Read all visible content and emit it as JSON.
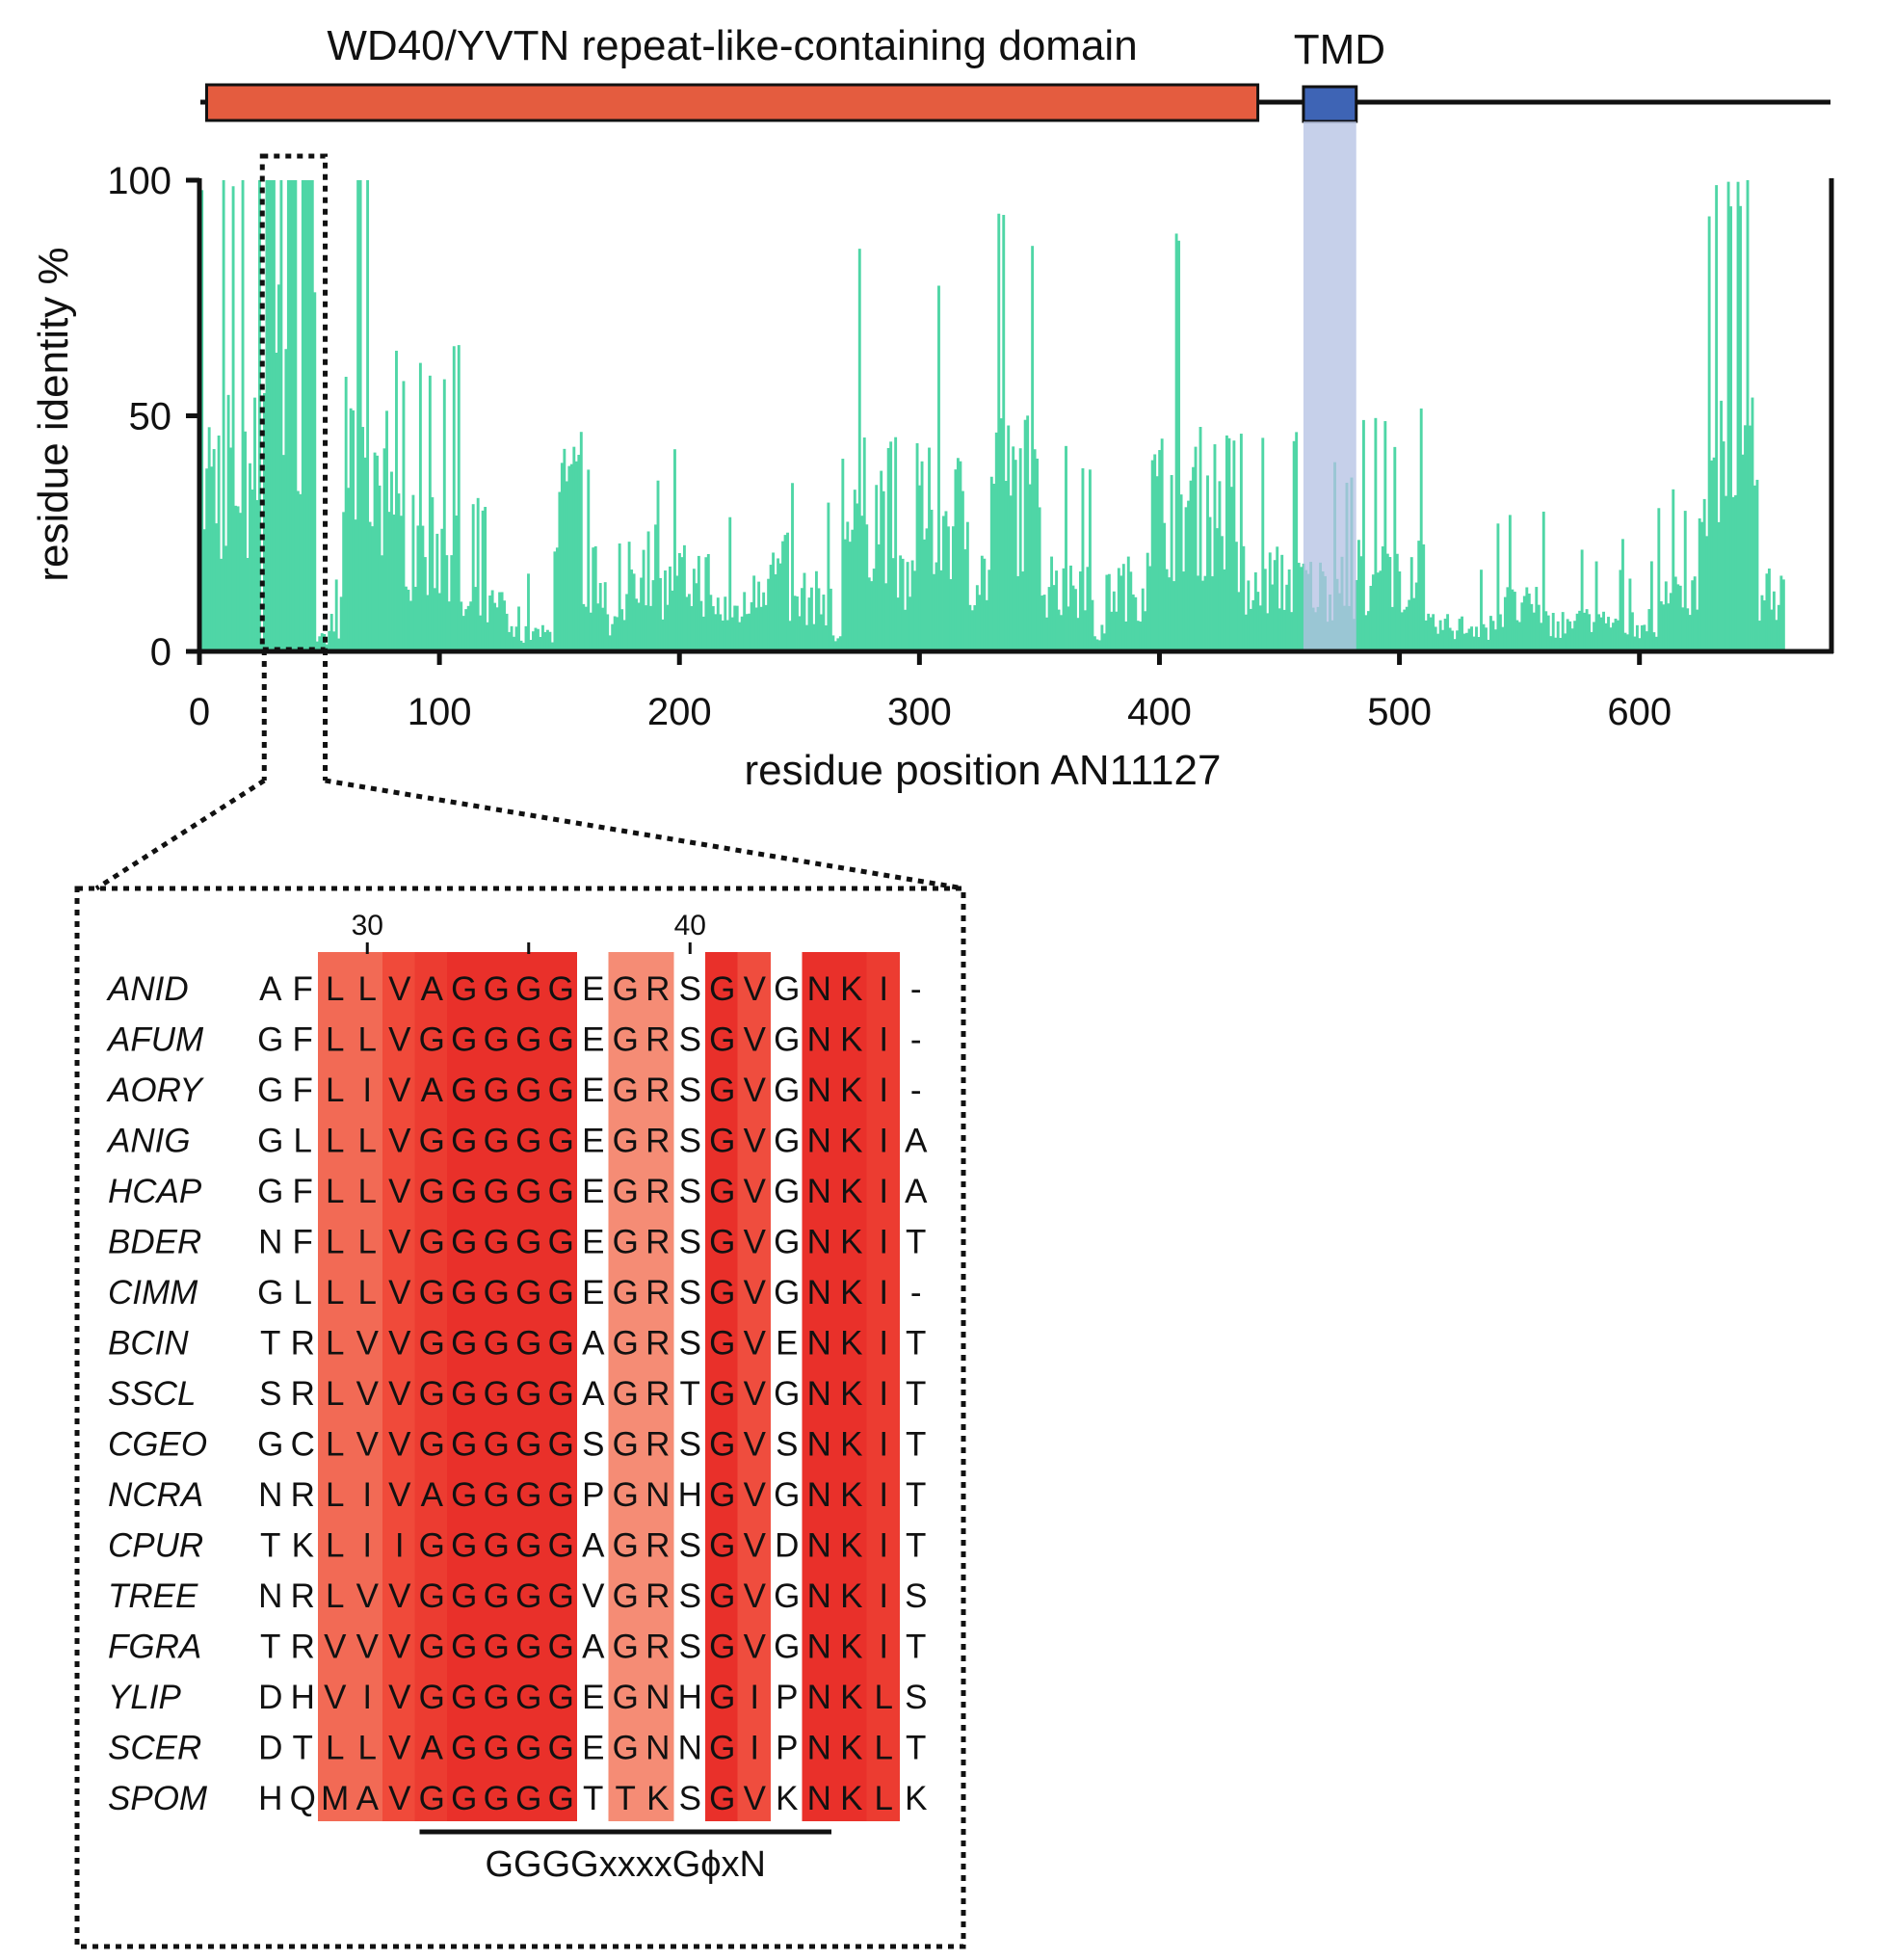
{
  "domains": {
    "wd40_label": "WD40/YVTN repeat-like-containing domain",
    "tmd_label": "TMD",
    "wd40_range": [
      3,
      441
    ],
    "tmd_range": [
      460,
      482
    ],
    "protein_length": 680,
    "colors": {
      "wd40": "#e45c3f",
      "tmd": "#3e64b5",
      "tmd_shade": "#b3c0e3"
    }
  },
  "chart_data": {
    "type": "bar",
    "title": "",
    "xlabel": "residue position AN11127",
    "ylabel": "residue identity %",
    "xlim": [
      0,
      680
    ],
    "ylim": [
      0,
      100
    ],
    "xticks": [
      "0",
      "100",
      "200",
      "300",
      "400",
      "500",
      "600"
    ],
    "yticks": [
      "0",
      "50",
      "100"
    ],
    "bar_color": "#4fd6a6",
    "n_positions": 660,
    "highlight_window": [
      25,
      52
    ],
    "profile_peaks": [
      {
        "start": 1,
        "end": 25,
        "level": 50
      },
      {
        "start": 27,
        "end": 48,
        "level": 95
      },
      {
        "start": 60,
        "end": 80,
        "level": 55
      },
      {
        "start": 80,
        "end": 108,
        "level": 30
      },
      {
        "start": 108,
        "end": 128,
        "level": 12
      },
      {
        "start": 128,
        "end": 150,
        "level": 5
      },
      {
        "start": 148,
        "end": 158,
        "level": 40
      },
      {
        "start": 158,
        "end": 170,
        "level": 20
      },
      {
        "start": 170,
        "end": 178,
        "level": 8
      },
      {
        "start": 178,
        "end": 190,
        "level": 25
      },
      {
        "start": 190,
        "end": 200,
        "level": 18
      },
      {
        "start": 200,
        "end": 212,
        "level": 20
      },
      {
        "start": 212,
        "end": 230,
        "level": 12
      },
      {
        "start": 230,
        "end": 245,
        "level": 22
      },
      {
        "start": 245,
        "end": 262,
        "level": 15
      },
      {
        "start": 268,
        "end": 290,
        "level": 40
      },
      {
        "start": 290,
        "end": 300,
        "level": 20
      },
      {
        "start": 300,
        "end": 320,
        "level": 38
      },
      {
        "start": 320,
        "end": 335,
        "level": 22
      },
      {
        "start": 330,
        "end": 350,
        "level": 45
      },
      {
        "start": 350,
        "end": 372,
        "level": 20
      },
      {
        "start": 372,
        "end": 380,
        "level": 5
      },
      {
        "start": 380,
        "end": 395,
        "level": 18
      },
      {
        "start": 395,
        "end": 432,
        "level": 42
      },
      {
        "start": 432,
        "end": 462,
        "level": 20
      },
      {
        "start": 462,
        "end": 482,
        "level": 18
      },
      {
        "start": 482,
        "end": 510,
        "level": 22
      },
      {
        "start": 510,
        "end": 540,
        "level": 7
      },
      {
        "start": 540,
        "end": 560,
        "level": 12
      },
      {
        "start": 560,
        "end": 608,
        "level": 8
      },
      {
        "start": 608,
        "end": 630,
        "level": 15
      },
      {
        "start": 625,
        "end": 648,
        "level": 48
      },
      {
        "start": 648,
        "end": 660,
        "level": 18
      }
    ]
  },
  "alignment": {
    "position_labels": [
      {
        "label": "30",
        "col": 3
      },
      {
        "label": "40",
        "col": 13
      }
    ],
    "major_tick_col": 8,
    "species": [
      "ANID",
      "AFUM",
      "AORY",
      "ANIG",
      "HCAP",
      "BDER",
      "CIMM",
      "BCIN",
      "SSCL",
      "CGEO",
      "NCRA",
      "CPUR",
      "TREE",
      "FGRA",
      "YLIP",
      "SCER",
      "SPOM"
    ],
    "sequences": [
      "AFLLVAGGGGEGRSGVGNKI-",
      "GFLLVGGGGGEGRSGVGNKI-",
      "GFLIVAGGGGEGRSGVGNKI-",
      "GLLLVGGGGGEGRSGVGNKIA",
      "GFLLVGGGGGEGRSGVGNKIA",
      "NFLLVGGGGGEGRSGVGNKIT",
      "GLLLVGGGGGEGRSGVGNKI-",
      "TRLVVGGGGGAGRSGVENKIT",
      "SRLVVGGGGGAGRTGVGNKIT",
      "GCLVVGGGGGSGRSGVSNKIT",
      "NRLIVAGGGGPGNHGVGNKIT",
      "TKLIIGGGGGAGRSGVDNKIT",
      "NRLVVGGGGGVGRSGVGNKIS",
      "TRVVVGGGGGAGRSGVGNKIT",
      "DHVIVGGGGGEGNHGIPNKLS",
      "DTLLVAGGGGEGNNGIPNKLT",
      "HQMAVGGGGGTTKSGVKNKLK"
    ],
    "column_shading": [
      "",
      "",
      "#f26a55",
      "#f26a55",
      "#f04a3a",
      "#ec3c31",
      "#e9302a",
      "#e9302a",
      "#e9302a",
      "#e9302a",
      "",
      "#f58c75",
      "#f58c75",
      "",
      "#e9302a",
      "#ef4d3e",
      "",
      "#e9302a",
      "#e9302a",
      "#ec3c31",
      ""
    ],
    "motif_label": "GGGGxxxxGϕxN",
    "motif_underline_cols": [
      5,
      17
    ]
  }
}
